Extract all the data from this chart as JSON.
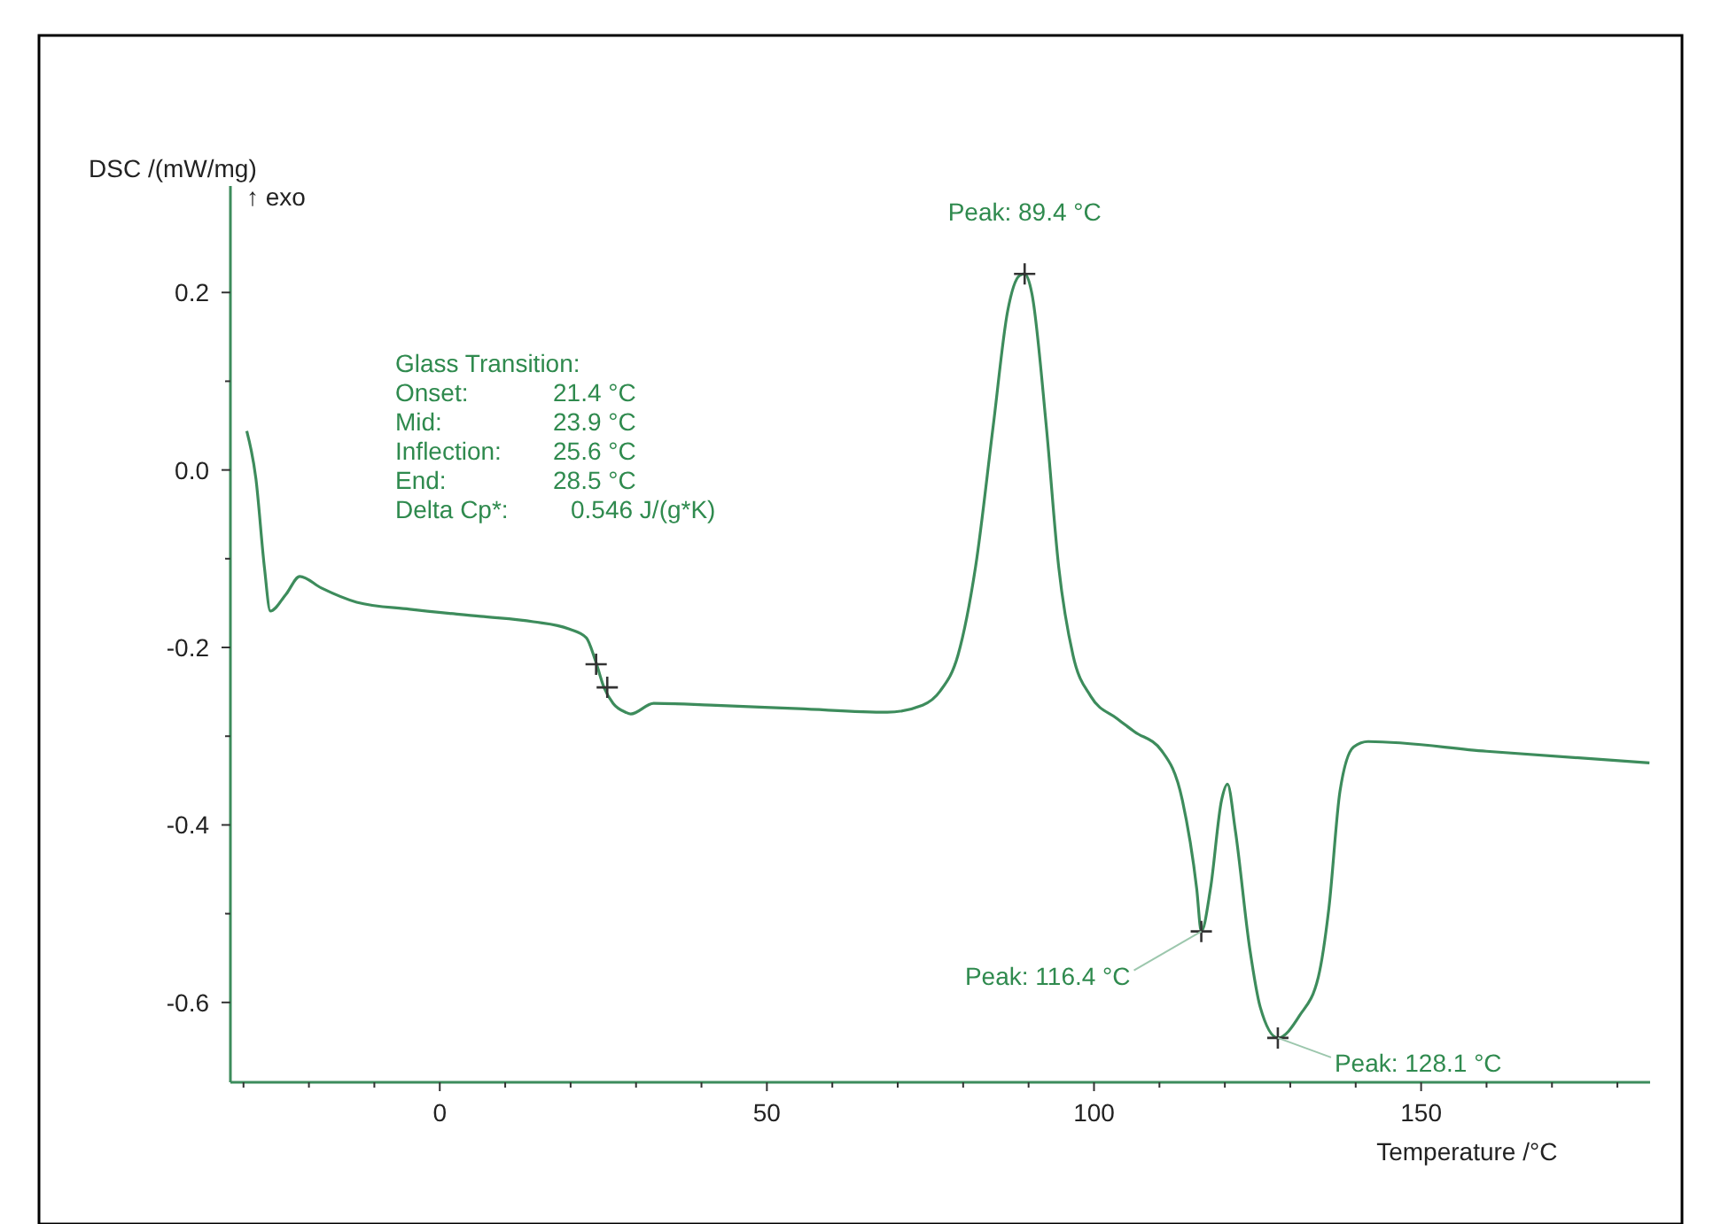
{
  "chart_data": {
    "type": "line",
    "xlabel": "Temperature /°C",
    "ylabel": "DSC /(mW/mg)\n↑ exo",
    "xlim": [
      -32,
      185
    ],
    "ylim": [
      -0.69,
      0.32
    ],
    "xticks": [
      {
        "value": -30,
        "label": null
      },
      {
        "value": -20,
        "label": null
      },
      {
        "value": -10,
        "label": null
      },
      0,
      {
        "value": 10,
        "label": null
      },
      {
        "value": 20,
        "label": null
      },
      {
        "value": 30,
        "label": null
      },
      {
        "value": 40,
        "label": null
      },
      50,
      {
        "value": 60,
        "label": null
      },
      {
        "value": 70,
        "label": null
      },
      {
        "value": 80,
        "label": null
      },
      {
        "value": 90,
        "label": null
      },
      100,
      {
        "value": 110,
        "label": null
      },
      {
        "value": 120,
        "label": null
      },
      {
        "value": 130,
        "label": null
      },
      {
        "value": 140,
        "label": null
      },
      150,
      {
        "value": 160,
        "label": null
      },
      {
        "value": 170,
        "label": null
      },
      {
        "value": 180,
        "label": null
      }
    ],
    "yticks": [
      0.2,
      {
        "value": 0.1,
        "label": null
      },
      {
        "value": 0,
        "label": "0.0"
      },
      {
        "value": -0.1,
        "label": null
      },
      -0.2,
      {
        "value": -0.3,
        "label": null
      },
      -0.4,
      {
        "value": -0.5,
        "label": null
      },
      -0.6
    ],
    "grid": false,
    "marker": "none",
    "line_style": "solid",
    "series": [
      {
        "color": "#3d8c5c",
        "x": [
          -29.5,
          -28.1,
          -26.8,
          -25.9,
          -23.5,
          -21.4,
          -18.1,
          -12.7,
          -4.6,
          6.2,
          14.3,
          19.7,
          22.4,
          23.8,
          25.1,
          26.5,
          28.4,
          29.2,
          32.7,
          41.4,
          54.9,
          68.4,
          73.8,
          76.5,
          79.2,
          81.9,
          84.6,
          86.8,
          88.6,
          89.4,
          90.5,
          92.7,
          94.6,
          96.8,
          99.5,
          103.5,
          106.2,
          110.3,
          113.5,
          115.7,
          116.4,
          117.8,
          119.5,
          120.4,
          121.6,
          123.8,
          125.4,
          128.1,
          131.4,
          134.3,
          135.9,
          137.6,
          139.7,
          141.9,
          160,
          184.9
        ],
        "values": [
          0.044,
          -0.01,
          -0.11,
          -0.159,
          -0.14,
          -0.12,
          -0.133,
          -0.149,
          -0.157,
          -0.165,
          -0.171,
          -0.179,
          -0.189,
          -0.215,
          -0.245,
          -0.263,
          -0.273,
          -0.275,
          -0.263,
          -0.265,
          -0.269,
          -0.273,
          -0.265,
          -0.249,
          -0.209,
          -0.109,
          0.05,
          0.179,
          0.219,
          0.221,
          0.199,
          0.05,
          -0.109,
          -0.209,
          -0.255,
          -0.28,
          -0.295,
          -0.316,
          -0.372,
          -0.472,
          -0.52,
          -0.472,
          -0.372,
          -0.354,
          -0.406,
          -0.539,
          -0.605,
          -0.64,
          -0.615,
          -0.571,
          -0.494,
          -0.362,
          -0.312,
          -0.306,
          -0.317,
          -0.33
        ]
      },
      {
        "type": "scatter",
        "color": "#333333",
        "marker": "cross",
        "x": [
          23.9,
          25.6,
          89.4,
          116.4,
          128.1
        ],
        "values": [
          -0.219,
          -0.245,
          0.221,
          -0.52,
          -0.64
        ]
      }
    ],
    "annotations": [
      {
        "text": "Peak: 89.4 °C",
        "x": 89.4,
        "y": 0.221
      },
      {
        "text": "Peak: 116.4 °C",
        "x": 116.4,
        "y": -0.52
      },
      {
        "text": "Peak: 128.1 °C",
        "x": 128.1,
        "y": -0.64
      },
      "Glass Transition:",
      "Onset: 21.4 °C",
      "Mid: 23.9 °C",
      "Inflection: 25.6 °C",
      "End: 28.5 °C",
      "Delta Cp*: 0.546 J/(g*K)"
    ]
  }
}
